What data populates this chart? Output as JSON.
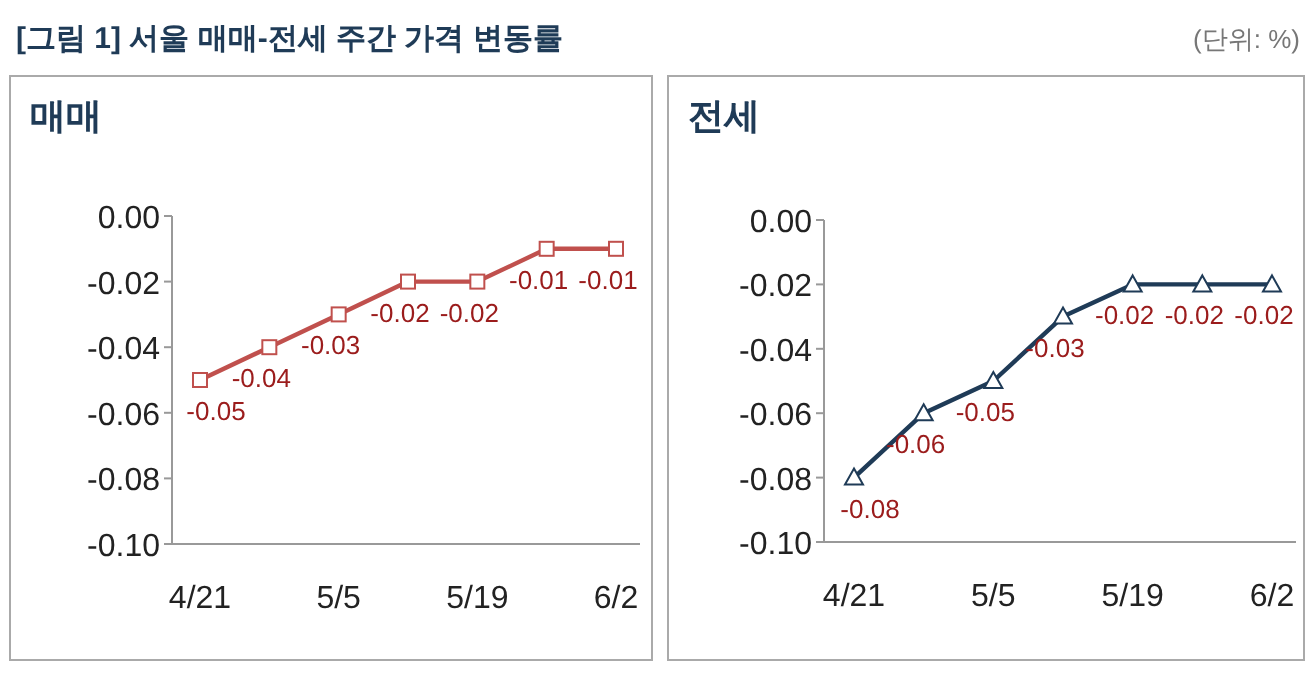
{
  "chart_data": [
    {
      "type": "line",
      "title": "[그림 1] 서울 매매-전세 주간 가격 변동률",
      "subtitle": "매매",
      "annotations": [
        "(단위: %)"
      ],
      "categories": [
        "4/21",
        null,
        "5/5",
        null,
        "5/19",
        null,
        "6/2"
      ],
      "series": [
        {
          "color": "#c0504d",
          "values": [
            -0.05,
            -0.04,
            -0.03,
            -0.02,
            -0.02,
            -0.01,
            -0.01
          ]
        }
      ],
      "ylim": [
        -0.1,
        0
      ],
      "yticks": [
        {
          "value": -0.1,
          "label": "-0.10"
        },
        {
          "value": -0.08,
          "label": "-0.08"
        },
        {
          "value": -0.06,
          "label": "-0.06"
        },
        {
          "value": -0.04,
          "label": "-0.04"
        },
        {
          "value": -0.02,
          "label": "-0.02"
        },
        {
          "value": 0,
          "label": "0.00"
        }
      ],
      "marker": "square",
      "data_labels": true
    },
    {
      "type": "line",
      "subtitle": "전세",
      "categories": [
        "4/21",
        null,
        "5/5",
        null,
        "5/19",
        null,
        "6/2"
      ],
      "series": [
        {
          "color": "#1f3b57",
          "values": [
            -0.08,
            -0.06,
            -0.05,
            -0.03,
            -0.02,
            -0.02,
            -0.02
          ]
        }
      ],
      "ylim": [
        -0.1,
        0
      ],
      "yticks": [
        {
          "value": -0.1,
          "label": "-0.10"
        },
        {
          "value": -0.08,
          "label": "-0.08"
        },
        {
          "value": -0.06,
          "label": "-0.06"
        },
        {
          "value": -0.04,
          "label": "-0.04"
        },
        {
          "value": -0.02,
          "label": "-0.02"
        },
        {
          "value": 0,
          "label": "0.00"
        }
      ],
      "marker": "triangle",
      "data_labels": true
    }
  ]
}
